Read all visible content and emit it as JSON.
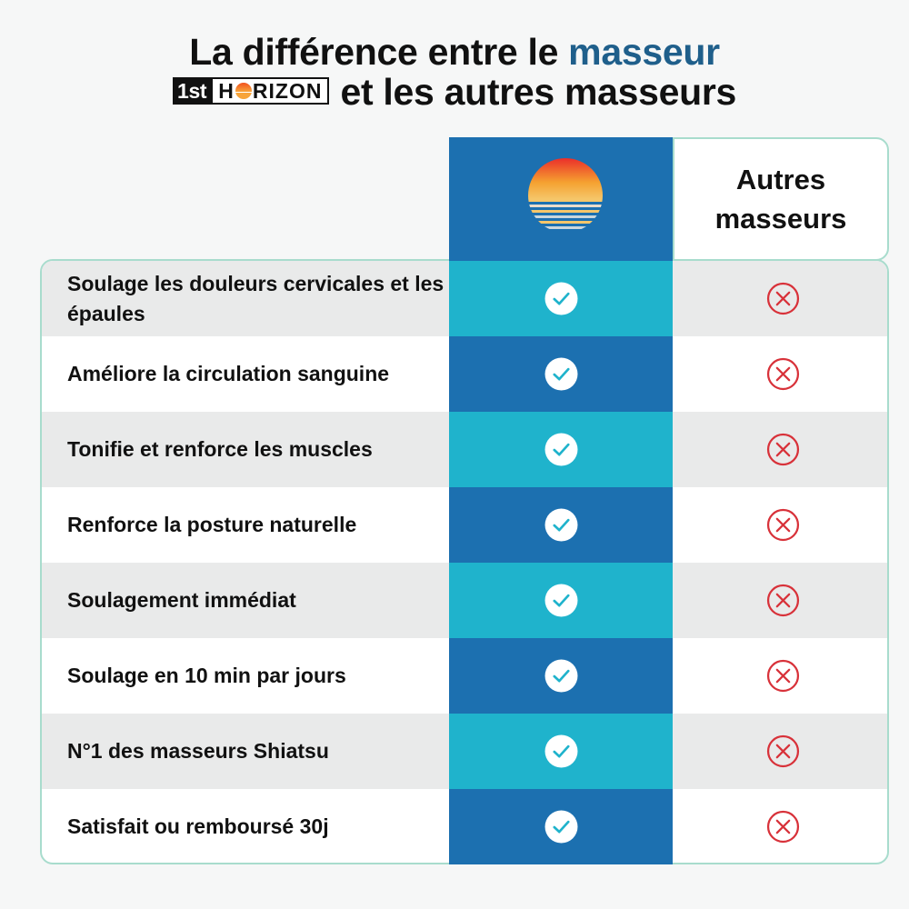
{
  "header": {
    "title_part1": "La différence entre le ",
    "title_highlight": "masseur",
    "brand_1st": "1st",
    "brand_h": "H",
    "brand_rizon": "RIZON",
    "title_part2": "et les autres masseurs"
  },
  "columns": {
    "other_line1": "Autres",
    "other_line2": "masseurs"
  },
  "colors": {
    "highlight": "#1f5f8b",
    "brand_dark": "#1c70b0",
    "brand_light": "#1fb3cc",
    "check": "#1fb3cc",
    "cross": "#d8323a",
    "border": "#a8dccd"
  },
  "icons": {
    "brand_logo": "sunset-logo-icon",
    "included": "check-circle-icon",
    "excluded": "cross-circle-icon"
  },
  "rows": [
    {
      "label": "Soulage les douleurs cervicales et les épaules"
    },
    {
      "label": "Améliore la circulation sanguine"
    },
    {
      "label": "Tonifie et renforce les muscles"
    },
    {
      "label": "Renforce la posture naturelle"
    },
    {
      "label": "Soulagement immédiat"
    },
    {
      "label": "Soulage en 10 min par jours"
    },
    {
      "label": "N°1 des masseurs Shiatsu"
    },
    {
      "label": "Satisfait ou remboursé 30j"
    }
  ]
}
